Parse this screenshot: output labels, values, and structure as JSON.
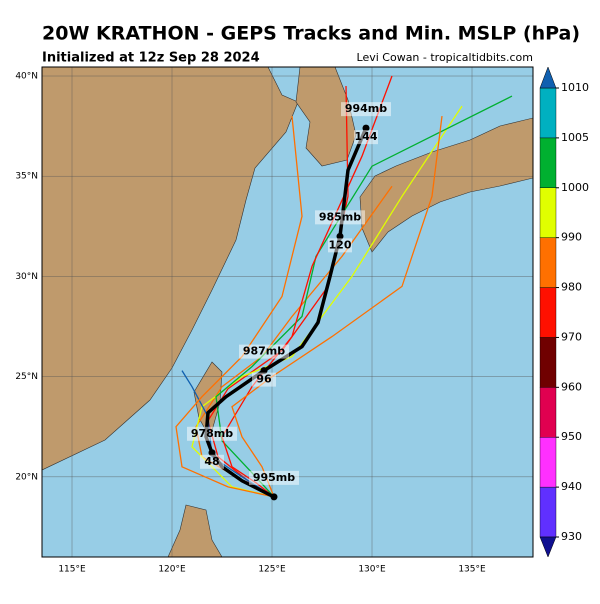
{
  "header": {
    "title": "20W KRATHON - GEPS Tracks and Min. MSLP (hPa)",
    "subtitle": "Initialized at 12z Sep 28 2024",
    "credit": "Levi Cowan - tropicaltidbits.com"
  },
  "map": {
    "lonlim": [
      113.5,
      138.05
    ],
    "latlim": [
      16,
      40.45
    ],
    "lonticks": [
      {
        "value": 115,
        "label": "115°E"
      },
      {
        "value": 120,
        "label": "120°E"
      },
      {
        "value": 125,
        "label": "125°E"
      },
      {
        "value": 130,
        "label": "130°E"
      },
      {
        "value": 135,
        "label": "135°E"
      }
    ],
    "latticks": [
      {
        "value": 20,
        "label": "20°N"
      },
      {
        "value": 25,
        "label": "25°N"
      },
      {
        "value": 30,
        "label": "30°N"
      },
      {
        "value": 35,
        "label": "35°N"
      },
      {
        "value": 40,
        "label": "40°N"
      }
    ],
    "mean_track": {
      "lon": [
        125.1,
        123.5,
        122.5,
        122.0,
        121.7,
        121.8,
        122.7,
        124.6,
        126.5,
        127.3,
        127.9,
        128.4,
        128.8,
        129.7
      ],
      "lat": [
        19.0,
        19.8,
        20.5,
        21.2,
        22.0,
        23.2,
        24.0,
        25.3,
        26.5,
        27.7,
        30.0,
        32.0,
        35.3,
        37.4
      ]
    },
    "points": [
      {
        "pressure": "995mb",
        "lon": 125.1,
        "lat": 19.0
      },
      {
        "pressure": "978mb",
        "hour": "48",
        "lon": 122.0,
        "lat": 21.2
      },
      {
        "pressure": "987mb",
        "hour": "96",
        "lon": 124.6,
        "lat": 25.3
      },
      {
        "pressure": "985mb",
        "hour": "120",
        "lon": 128.4,
        "lat": 32.0
      },
      {
        "pressure": "994mb",
        "hour": "144",
        "lon": 129.7,
        "lat": 37.4
      }
    ],
    "members": [
      {
        "color": "#ff7000",
        "lon": [
          125.1,
          123.2,
          121.5,
          121.2,
          122.5,
          124.5,
          126.0,
          128.5,
          131.0
        ],
        "lat": [
          19.0,
          20.0,
          21.0,
          22.5,
          24.5,
          26.0,
          28.0,
          31.0,
          34.5
        ]
      },
      {
        "color": "#ff1000",
        "lon": [
          125.1,
          123.8,
          122.3,
          121.8,
          122.8,
          125.5,
          127.8,
          128.8,
          128.7
        ],
        "lat": [
          19.0,
          19.8,
          21.0,
          22.8,
          24.4,
          26.3,
          29.5,
          34.0,
          39.5
        ]
      },
      {
        "color": "#e0ff00",
        "lon": [
          125.1,
          123.0,
          121.0,
          121.5,
          123.5,
          126.0,
          129.0,
          131.5,
          134.5
        ],
        "lat": [
          19.0,
          19.5,
          21.5,
          23.5,
          25.0,
          26.0,
          30.0,
          34.0,
          38.5
        ]
      },
      {
        "color": "#00b030",
        "lon": [
          125.1,
          124.0,
          122.5,
          122.2,
          124.0,
          126.5,
          127.2,
          130.0,
          137.0
        ],
        "lat": [
          19.0,
          20.2,
          21.8,
          24.0,
          25.5,
          28.0,
          31.0,
          35.5,
          39.0
        ]
      },
      {
        "color": "#1060b0",
        "lon": [
          125.1,
          123.5,
          122.0,
          121.8,
          121.0,
          120.5
        ],
        "lat": [
          19.0,
          20.0,
          21.0,
          23.0,
          24.5,
          25.3
        ]
      },
      {
        "color": "#ff7000",
        "lon": [
          125.1,
          122.8,
          120.5,
          120.2,
          121.5,
          123.5,
          125.5,
          126.5,
          126.0
        ],
        "lat": [
          19.0,
          19.5,
          20.5,
          22.5,
          24.0,
          26.0,
          29.0,
          33.0,
          38.0
        ]
      },
      {
        "color": "#ff1000",
        "lon": [
          125.1,
          124.2,
          123.0,
          122.5,
          124.0,
          126.0,
          127.0,
          129.5,
          131.0
        ],
        "lat": [
          19.0,
          19.7,
          20.5,
          22.0,
          24.5,
          27.0,
          30.5,
          36.0,
          40.0
        ]
      },
      {
        "color": "#ff7000",
        "lon": [
          125.1,
          124.5,
          123.5,
          123.0,
          125.0,
          128.0,
          131.5,
          133.0,
          133.5
        ],
        "lat": [
          19.0,
          20.5,
          22.0,
          23.5,
          25.0,
          27.0,
          29.5,
          34.0,
          38.0
        ]
      }
    ]
  },
  "colorbar": {
    "levels": [
      930,
      940,
      950,
      960,
      970,
      980,
      990,
      1000,
      1005,
      1010
    ],
    "colors": [
      "#6030ff",
      "#ff30ff",
      "#e00050",
      "#700000",
      "#ff1000",
      "#ff7000",
      "#e0ff00",
      "#00b030",
      "#00b0c0"
    ],
    "under": "#101090",
    "over": "#1060b0"
  }
}
